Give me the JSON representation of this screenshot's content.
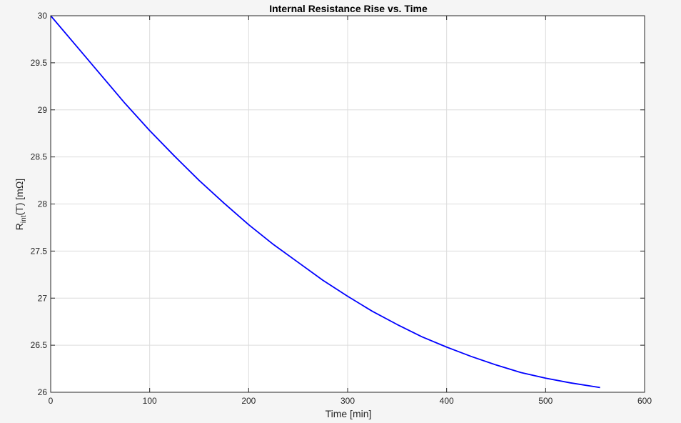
{
  "chart_data": {
    "type": "line",
    "title": "Internal Resistance Rise vs. Time",
    "xlabel": "Time [min]",
    "ylabel": {
      "base": "R",
      "subscript": "int",
      "suffix": "(T)  [mΩ]"
    },
    "xlim": [
      0,
      600
    ],
    "ylim": [
      26,
      30
    ],
    "xticks": [
      0,
      100,
      200,
      300,
      400,
      500,
      600
    ],
    "xtick_labels": [
      "0",
      "100",
      "200",
      "300",
      "400",
      "500",
      "600"
    ],
    "yticks": [
      26,
      26.5,
      27,
      27.5,
      28,
      28.5,
      29,
      29.5,
      30
    ],
    "ytick_labels": [
      "26",
      "26.5",
      "27",
      "27.5",
      "28",
      "28.5",
      "29",
      "29.5",
      "30"
    ],
    "grid": true,
    "series": [
      {
        "color": "#0000ff",
        "x": [
          0,
          25,
          50,
          75,
          100,
          125,
          150,
          175,
          200,
          225,
          250,
          275,
          300,
          325,
          350,
          375,
          400,
          425,
          450,
          475,
          500,
          525,
          555
        ],
        "y": [
          30.0,
          29.69,
          29.38,
          29.07,
          28.78,
          28.51,
          28.25,
          28.01,
          27.78,
          27.57,
          27.38,
          27.19,
          27.02,
          26.86,
          26.72,
          26.59,
          26.48,
          26.38,
          26.29,
          26.21,
          26.15,
          26.1,
          26.05
        ]
      }
    ],
    "colors": {
      "background": "#f5f5f5",
      "plot_area": "#ffffff",
      "grid": "#dcdcdc",
      "axis": "#262626"
    }
  }
}
